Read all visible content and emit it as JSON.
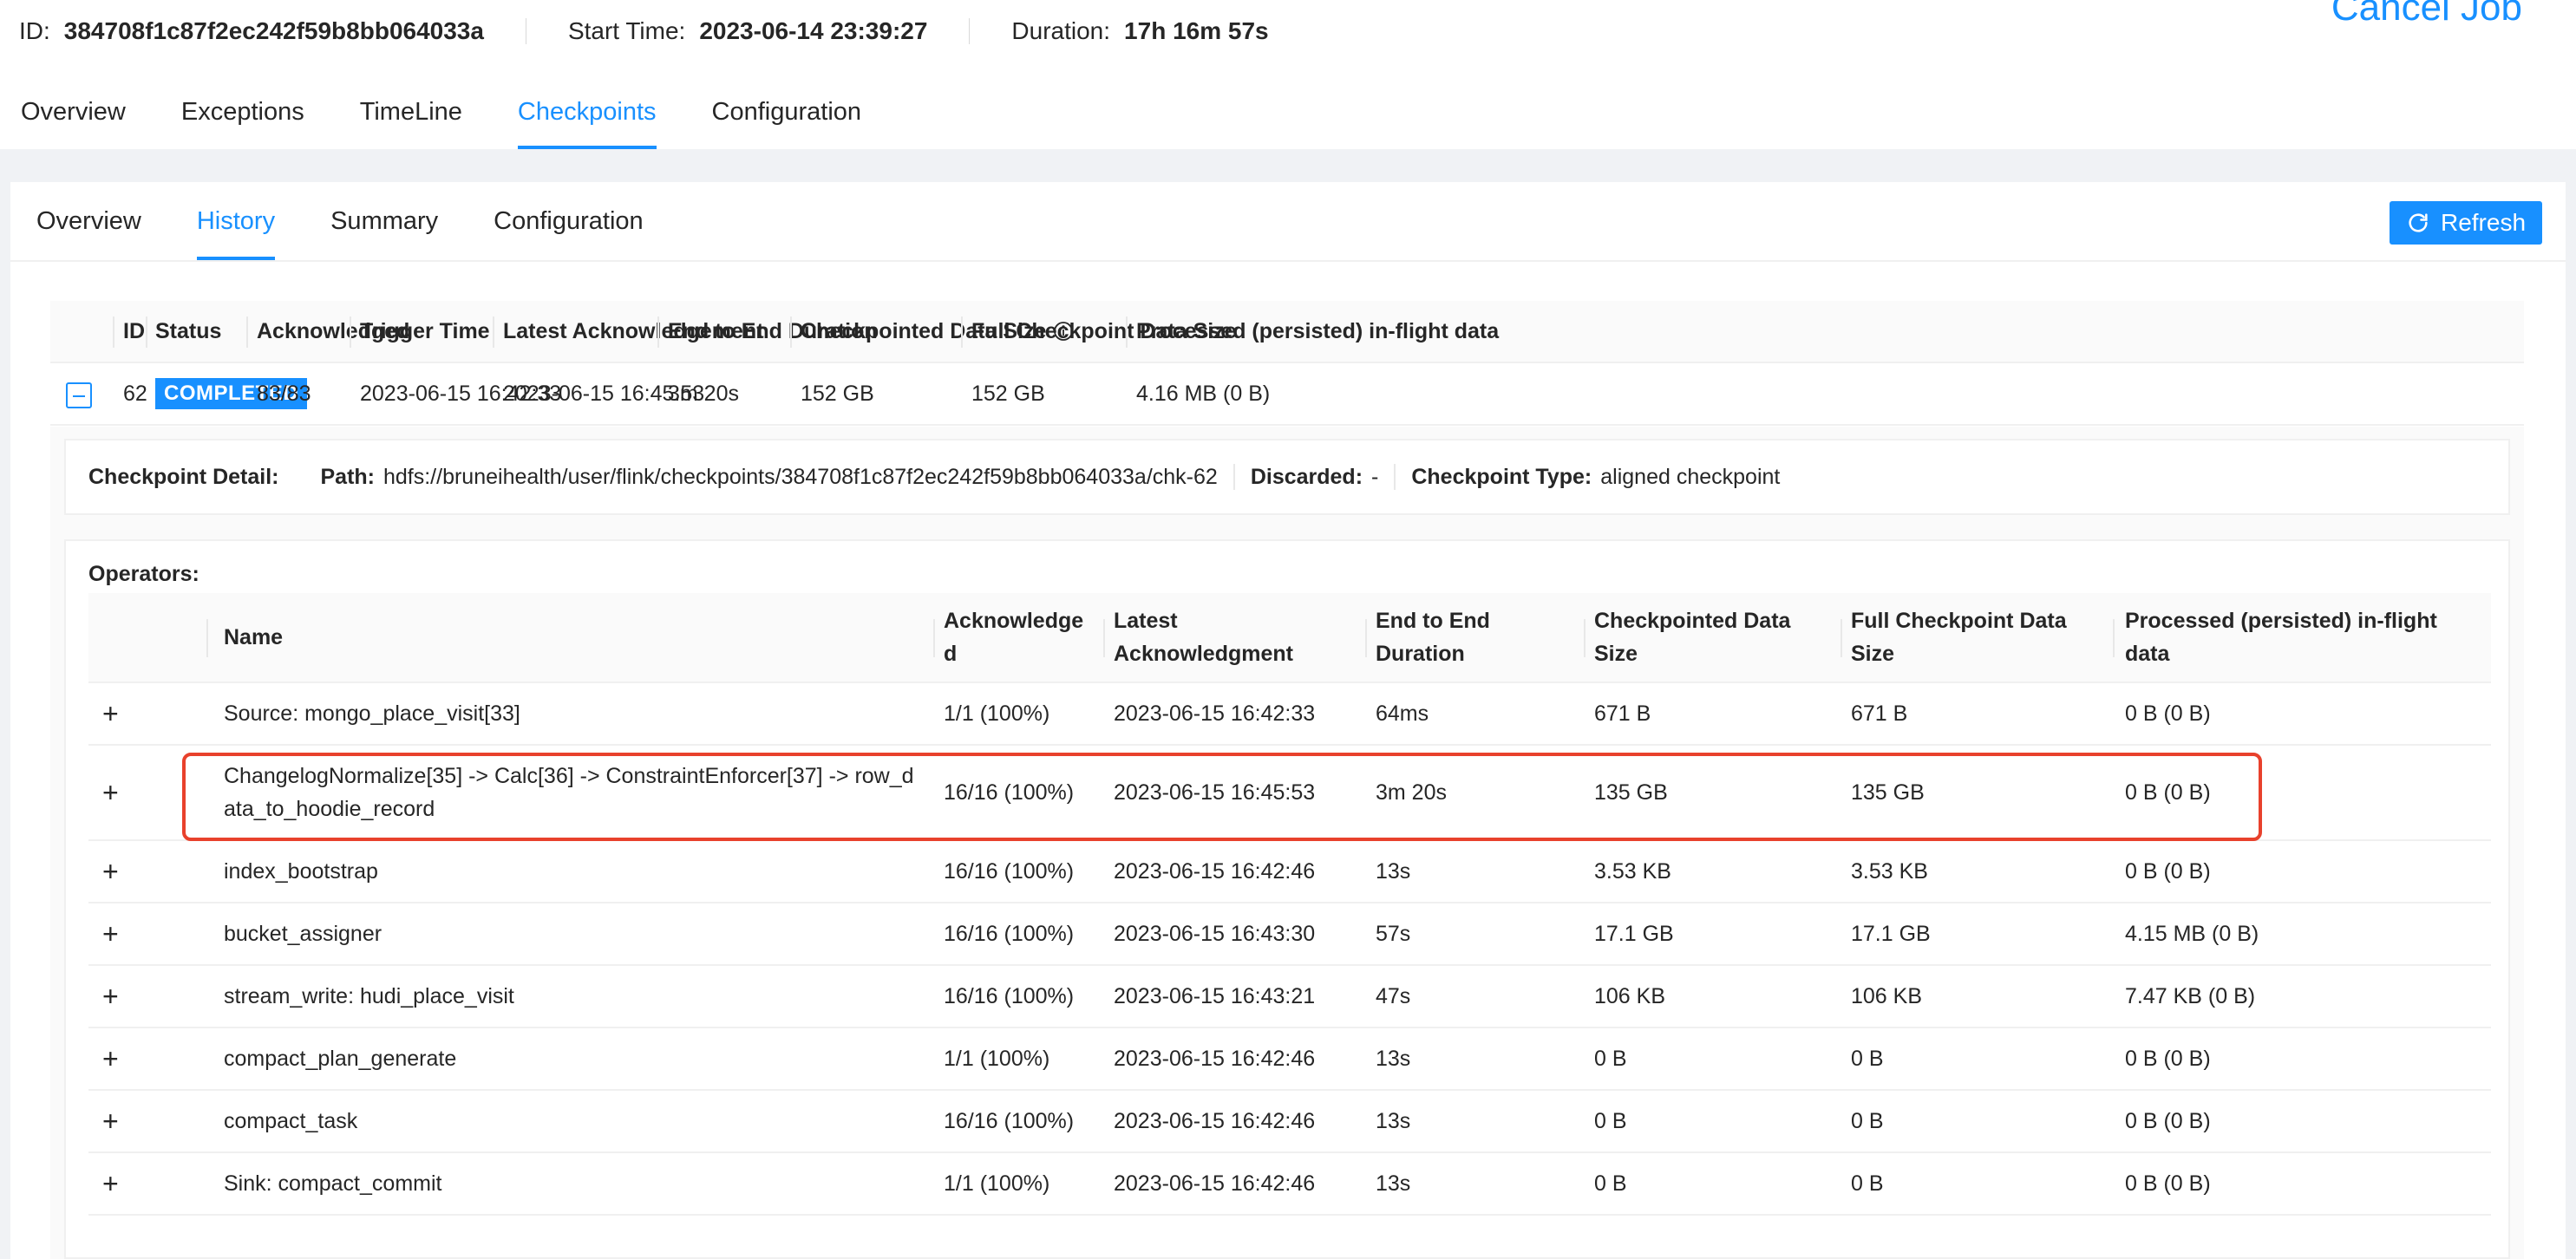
{
  "job": {
    "id_label": "ID:",
    "id_value": "384708f1c87f2ec242f59b8bb064033a",
    "start_label": "Start Time:",
    "start_value": "2023-06-14 23:39:27",
    "duration_label": "Duration:",
    "duration_value": "17h 16m 57s",
    "cancel_label": "Cancel Job"
  },
  "job_tabs": [
    "Overview",
    "Exceptions",
    "TimeLine",
    "Checkpoints",
    "Configuration"
  ],
  "job_tabs_active": "Checkpoints",
  "sub_tabs": [
    "Overview",
    "History",
    "Summary",
    "Configuration"
  ],
  "sub_tabs_active": "History",
  "refresh_label": "Refresh",
  "history": {
    "headers": [
      "ID",
      "Status",
      "Acknowledged",
      "Trigger Time",
      "Latest Acknowledgement",
      "End to End Duration",
      "Checkpointed Data Size",
      "Full Checkpoint Data Size",
      "Processed (persisted) in-flight data"
    ],
    "row": {
      "id": "62",
      "status": "COMPLETED",
      "acknowledged": "83/83",
      "trigger_time": "2023-06-15 16:42:33",
      "latest_ack": "2023-06-15 16:45:53",
      "duration": "3m 20s",
      "data_size": "152 GB",
      "full_size": "152 GB",
      "inflight": "4.16 MB (0 B)"
    }
  },
  "detail": {
    "title": "Checkpoint Detail:",
    "path_label": "Path:",
    "path_value": "hdfs://bruneihealth/user/flink/checkpoints/384708f1c87f2ec242f59b8bb064033a/chk-62",
    "discarded_label": "Discarded:",
    "discarded_value": "-",
    "type_label": "Checkpoint Type:",
    "type_value": "aligned checkpoint"
  },
  "operators": {
    "title": "Operators:",
    "headers": [
      "Name",
      "Acknowledge d",
      "Latest Acknowledgment",
      "End to End Duration",
      "Checkpointed Data Size",
      "Full Checkpoint Data Size",
      "Processed (persisted) in-flight data"
    ],
    "rows": [
      {
        "name": "Source: mongo_place_visit[33]",
        "ack": "1/1 (100%)",
        "latest": "2023-06-15 16:42:33",
        "duration": "64ms",
        "size": "671 B",
        "full": "671 B",
        "inflight": "0 B (0 B)"
      },
      {
        "name": "ChangelogNormalize[35] -> Calc[36] -> ConstraintEnforcer[37] -> row_data_to_hoodie_record",
        "ack": "16/16 (100%)",
        "latest": "2023-06-15 16:45:53",
        "duration": "3m 20s",
        "size": "135 GB",
        "full": "135 GB",
        "inflight": "0 B (0 B)"
      },
      {
        "name": "index_bootstrap",
        "ack": "16/16 (100%)",
        "latest": "2023-06-15 16:42:46",
        "duration": "13s",
        "size": "3.53 KB",
        "full": "3.53 KB",
        "inflight": "0 B (0 B)"
      },
      {
        "name": "bucket_assigner",
        "ack": "16/16 (100%)",
        "latest": "2023-06-15 16:43:30",
        "duration": "57s",
        "size": "17.1 GB",
        "full": "17.1 GB",
        "inflight": "4.15 MB (0 B)"
      },
      {
        "name": "stream_write: hudi_place_visit",
        "ack": "16/16 (100%)",
        "latest": "2023-06-15 16:43:21",
        "duration": "47s",
        "size": "106 KB",
        "full": "106 KB",
        "inflight": "7.47 KB (0 B)"
      },
      {
        "name": "compact_plan_generate",
        "ack": "1/1 (100%)",
        "latest": "2023-06-15 16:42:46",
        "duration": "13s",
        "size": "0 B",
        "full": "0 B",
        "inflight": "0 B (0 B)"
      },
      {
        "name": "compact_task",
        "ack": "16/16 (100%)",
        "latest": "2023-06-15 16:42:46",
        "duration": "13s",
        "size": "0 B",
        "full": "0 B",
        "inflight": "0 B (0 B)"
      },
      {
        "name": "Sink: compact_commit",
        "ack": "1/1 (100%)",
        "latest": "2023-06-15 16:42:46",
        "duration": "13s",
        "size": "0 B",
        "full": "0 B",
        "inflight": "0 B (0 B)"
      }
    ]
  },
  "colors": {
    "accent": "#1890ff",
    "highlight": "#e8412c"
  },
  "icons": {
    "refresh": "refresh-icon",
    "info": "info-icon",
    "collapse": "collapse-icon",
    "expand": "plus-icon"
  }
}
